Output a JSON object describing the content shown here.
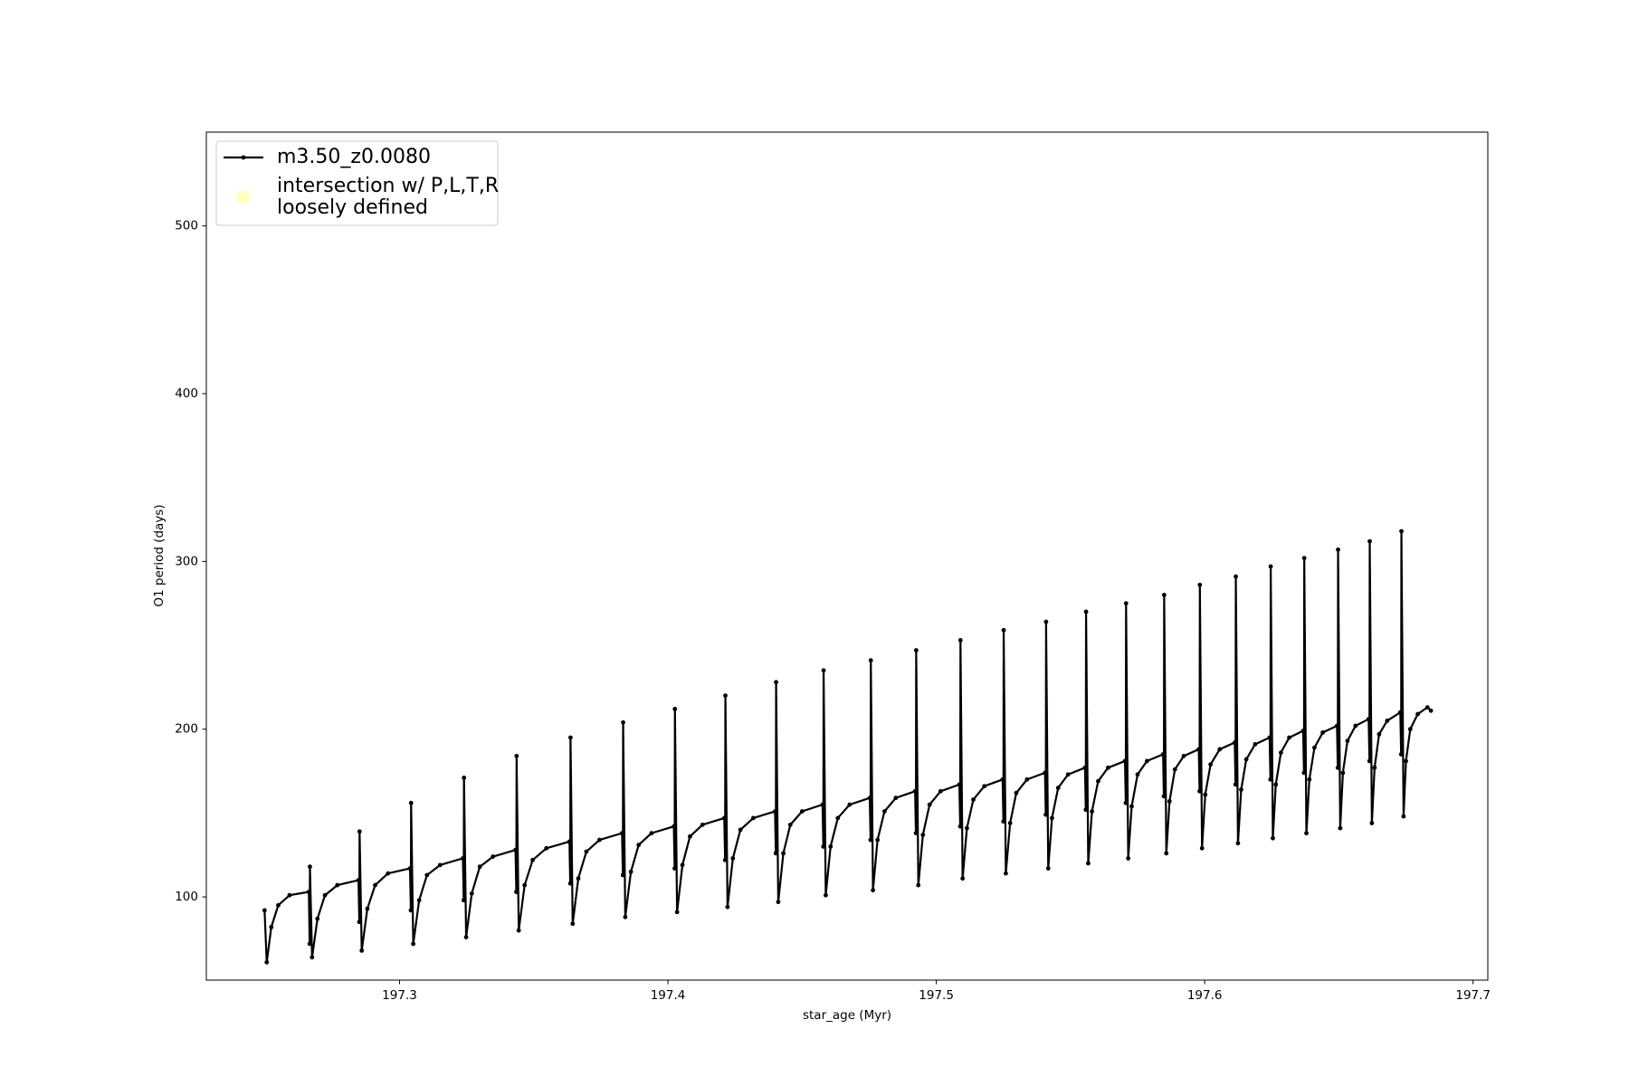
{
  "chart_data": {
    "type": "line",
    "xlabel": "star_age (Myr)",
    "ylabel": "O1 period (days)",
    "xlim": [
      197.228,
      197.7055
    ],
    "ylim": [
      50.4,
      555.9
    ],
    "xticks": [
      197.3,
      197.4,
      197.5,
      197.6,
      197.7
    ],
    "yticks": [
      100,
      200,
      300,
      400,
      500
    ],
    "legend": "upper left",
    "series": [
      {
        "name": "m3.50_z0.0080",
        "color": "#000000",
        "x": [
          197.2497,
          197.2505,
          197.2522,
          197.2548,
          197.259,
          197.2662,
          197.2665,
          197.2666,
          197.2674,
          197.2694,
          197.2722,
          197.2768,
          197.2847,
          197.285,
          197.2851,
          197.2859,
          197.288,
          197.2909,
          197.2957,
          197.3039,
          197.3042,
          197.3043,
          197.3051,
          197.3073,
          197.3102,
          197.3151,
          197.3236,
          197.3239,
          197.324,
          197.3248,
          197.3269,
          197.3299,
          197.3348,
          197.3432,
          197.3435,
          197.3436,
          197.3444,
          197.3466,
          197.3496,
          197.3547,
          197.3633,
          197.3636,
          197.3637,
          197.3645,
          197.3666,
          197.3696,
          197.3745,
          197.3829,
          197.3832,
          197.3833,
          197.3841,
          197.3862,
          197.3891,
          197.3939,
          197.4022,
          197.4025,
          197.4026,
          197.4034,
          197.4054,
          197.4082,
          197.4129,
          197.421,
          197.4213,
          197.4214,
          197.4222,
          197.4242,
          197.427,
          197.4318,
          197.4399,
          197.4402,
          197.4403,
          197.4411,
          197.443,
          197.4456,
          197.45,
          197.4576,
          197.4579,
          197.458,
          197.4588,
          197.4606,
          197.4633,
          197.4677,
          197.4752,
          197.4755,
          197.4756,
          197.4764,
          197.4781,
          197.4807,
          197.4849,
          197.4921,
          197.4924,
          197.4925,
          197.4933,
          197.495,
          197.4975,
          197.5016,
          197.5086,
          197.5089,
          197.509,
          197.5098,
          197.5114,
          197.5138,
          197.5179,
          197.5247,
          197.525,
          197.5251,
          197.5259,
          197.5275,
          197.5298,
          197.5338,
          197.5405,
          197.5408,
          197.5409,
          197.5417,
          197.5431,
          197.5454,
          197.5491,
          197.5554,
          197.5557,
          197.5558,
          197.5566,
          197.558,
          197.5603,
          197.564,
          197.5703,
          197.5706,
          197.5707,
          197.5715,
          197.5728,
          197.575,
          197.5785,
          197.5845,
          197.5848,
          197.5849,
          197.5857,
          197.5869,
          197.5889,
          197.5922,
          197.5978,
          197.5981,
          197.5982,
          197.599,
          197.6002,
          197.6022,
          197.6056,
          197.6112,
          197.6115,
          197.6116,
          197.6124,
          197.6136,
          197.6155,
          197.6188,
          197.6242,
          197.6245,
          197.6246,
          197.6254,
          197.6265,
          197.6284,
          197.6315,
          197.6367,
          197.637,
          197.6371,
          197.6379,
          197.639,
          197.6409,
          197.644,
          197.6493,
          197.6496,
          197.6497,
          197.6505,
          197.6515,
          197.6532,
          197.6562,
          197.6611,
          197.6614,
          197.6615,
          197.6623,
          197.6633,
          197.665,
          197.668,
          197.6729,
          197.6732,
          197.6733,
          197.6741,
          197.675,
          197.6766,
          197.6794,
          197.683,
          197.6843
        ],
        "values": [
          92,
          61,
          82,
          95,
          101,
          103,
          72,
          118,
          64,
          87,
          101,
          107,
          110,
          85,
          139,
          68,
          93,
          107,
          114,
          117,
          92,
          156,
          72,
          98,
          113,
          119,
          123,
          98,
          171,
          76,
          102,
          118,
          124,
          128,
          103,
          184,
          80,
          107,
          122,
          129,
          133,
          108,
          195,
          84,
          111,
          127,
          134,
          138,
          113,
          204,
          88,
          115,
          131,
          138,
          142,
          117,
          212,
          91,
          119,
          136,
          143,
          147,
          122,
          220,
          94,
          123,
          140,
          147,
          151,
          126,
          228,
          97,
          126,
          143,
          151,
          155,
          130,
          235,
          101,
          130,
          147,
          155,
          159,
          134,
          241,
          104,
          134,
          151,
          159,
          163,
          138,
          247,
          107,
          137,
          155,
          163,
          167,
          142,
          253,
          111,
          141,
          158,
          166,
          170,
          145,
          259,
          114,
          144,
          162,
          170,
          174,
          149,
          264,
          117,
          147,
          165,
          173,
          177,
          152,
          270,
          120,
          151,
          169,
          177,
          181,
          156,
          275,
          123,
          154,
          173,
          181,
          185,
          160,
          280,
          126,
          157,
          176,
          184,
          188,
          163,
          286,
          129,
          161,
          179,
          188,
          192,
          167,
          291,
          132,
          164,
          182,
          191,
          195,
          170,
          297,
          135,
          167,
          186,
          195,
          199,
          174,
          302,
          138,
          170,
          189,
          198,
          202,
          177,
          307,
          141,
          174,
          193,
          202,
          206,
          181,
          312,
          144,
          177,
          197,
          205,
          210,
          185,
          318,
          148,
          181,
          200,
          209,
          213,
          211
        ]
      },
      {
        "name": "intersection w/ P,L,T,R\nloosely defined",
        "color": "#ffffb2",
        "marker": "circle",
        "x": [],
        "values": []
      }
    ]
  }
}
